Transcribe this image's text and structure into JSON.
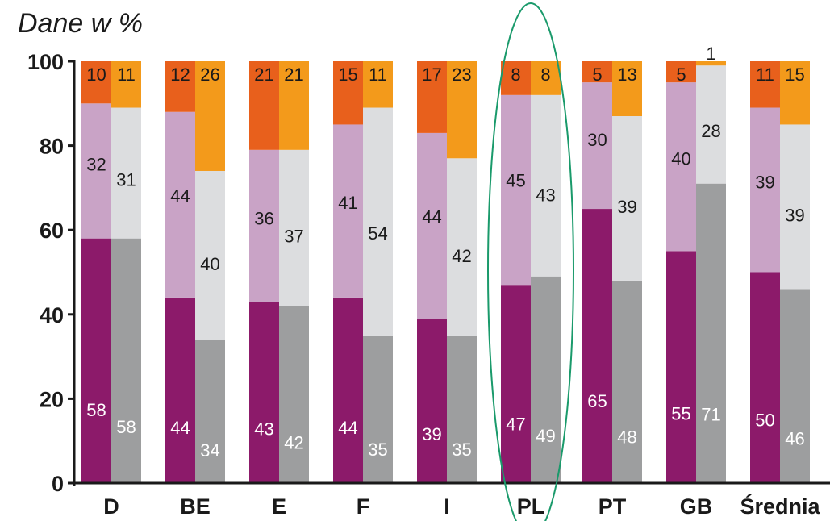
{
  "chart_data": {
    "type": "bar",
    "stacked": true,
    "grouped_pairs": true,
    "title": "Dane w %",
    "xlabel": "",
    "ylabel": "",
    "ylim": [
      0,
      100
    ],
    "yticks": [
      "0",
      "20",
      "40",
      "60",
      "80",
      "100"
    ],
    "grid": false,
    "legend": "none",
    "categories": [
      "D",
      "BE",
      "E",
      "F",
      "I",
      "PL",
      "PT",
      "GB",
      "Średnia"
    ],
    "highlight_category": "PL",
    "colors": {
      "left_bottom": "#8c1a6a",
      "left_middle": "#c9a3c6",
      "left_top": "#e8601c",
      "right_bottom": "#9d9e9f",
      "right_middle": "#dcdddf",
      "right_top": "#f39a1b",
      "highlight_ellipse": "#1a9a6b"
    },
    "left_series": {
      "bottom": [
        58,
        44,
        43,
        44,
        39,
        47,
        65,
        55,
        50
      ],
      "middle": [
        32,
        44,
        36,
        41,
        44,
        45,
        30,
        40,
        39
      ],
      "top": [
        10,
        12,
        21,
        15,
        17,
        8,
        5,
        5,
        11
      ]
    },
    "right_series": {
      "bottom": [
        58,
        34,
        42,
        35,
        35,
        49,
        48,
        71,
        46
      ],
      "middle": [
        31,
        40,
        37,
        54,
        42,
        43,
        39,
        28,
        39
      ],
      "top": [
        11,
        26,
        21,
        11,
        23,
        8,
        13,
        1,
        15
      ]
    }
  }
}
